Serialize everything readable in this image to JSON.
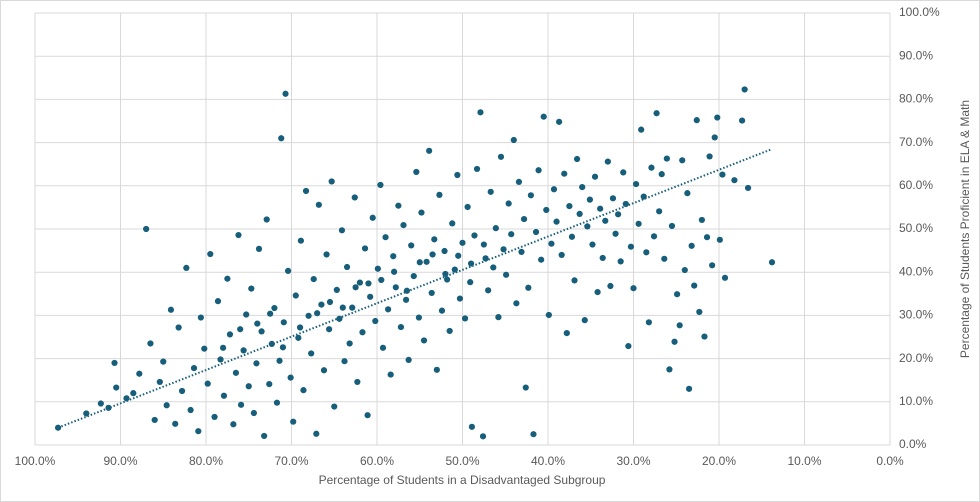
{
  "chart_data": {
    "type": "scatter",
    "x_label": "Percentage of Students in a Disadvantaged Subgroup",
    "y_label": "Percentage of Students Proficient in ELA & Math",
    "xlim": [
      100,
      0
    ],
    "ylim": [
      0,
      100
    ],
    "xticks": [
      {
        "value": 100,
        "label": "100.0%"
      },
      {
        "value": 90,
        "label": "90.0%"
      },
      {
        "value": 80,
        "label": "80.0%"
      },
      {
        "value": 70,
        "label": "70.0%"
      },
      {
        "value": 60,
        "label": "60.0%"
      },
      {
        "value": 50,
        "label": "50.0%"
      },
      {
        "value": 40,
        "label": "40.0%"
      },
      {
        "value": 30,
        "label": "30.0%"
      },
      {
        "value": 20,
        "label": "20.0%"
      },
      {
        "value": 10,
        "label": "10.0%"
      },
      {
        "value": 0,
        "label": "0.0%"
      }
    ],
    "yticks": [
      {
        "value": 0,
        "label": "0.0%"
      },
      {
        "value": 10,
        "label": "10.0%"
      },
      {
        "value": 20,
        "label": "20.0%"
      },
      {
        "value": 30,
        "label": "30.0%"
      },
      {
        "value": 40,
        "label": "40.0%"
      },
      {
        "value": 50,
        "label": "50.0%"
      },
      {
        "value": 60,
        "label": "60.0%"
      },
      {
        "value": 70,
        "label": "70.0%"
      },
      {
        "value": 80,
        "label": "80.0%"
      },
      {
        "value": 90,
        "label": "90.0%"
      },
      {
        "value": 100,
        "label": "100.0%"
      }
    ],
    "grid": true,
    "color": "#175e7a",
    "x": [
      97.3,
      94,
      92.3,
      91.4,
      90.7,
      90.5,
      89.3,
      88.5,
      87.8,
      87,
      86.5,
      86,
      85.4,
      85,
      84.6,
      84.1,
      83.6,
      83.2,
      82.8,
      82.3,
      81.8,
      81.4,
      80.9,
      80.6,
      80.2,
      79.8,
      79.5,
      79,
      78.6,
      78.3,
      77.9,
      77.5,
      77.2,
      76.8,
      76.5,
      76.2,
      75.9,
      75.6,
      75.3,
      75,
      74.7,
      74.4,
      74.1,
      73.8,
      73.5,
      73.2,
      72.9,
      72.6,
      72.3,
      72,
      71.7,
      71.4,
      71.2,
      70.9,
      70.7,
      70.4,
      70.1,
      69.8,
      69.5,
      69.2,
      68.9,
      68.6,
      68.3,
      68,
      67.7,
      67.4,
      67.1,
      66.8,
      66.5,
      66.2,
      65.9,
      65.6,
      65.3,
      65,
      64.7,
      64.4,
      64.1,
      63.8,
      63.5,
      63.2,
      62.9,
      62.6,
      62.3,
      62,
      61.7,
      61.4,
      61.1,
      60.8,
      60.5,
      60.2,
      59.9,
      59.6,
      59.3,
      59,
      58.7,
      58.4,
      58.1,
      57.8,
      57.5,
      57.2,
      56.9,
      56.6,
      56.3,
      56,
      55.7,
      55.4,
      55.1,
      54.8,
      54.5,
      54.2,
      53.9,
      53.6,
      53.3,
      53,
      52.7,
      52.4,
      52.1,
      51.8,
      51.5,
      51.2,
      50.9,
      50.6,
      50.3,
      50,
      49.7,
      49.4,
      49.1,
      48.9,
      48.6,
      48.3,
      47.9,
      47.6,
      47.3,
      47,
      46.7,
      46.4,
      46.1,
      45.8,
      45.5,
      45.2,
      44.9,
      44.6,
      44.3,
      44,
      43.7,
      43.4,
      43.1,
      42.8,
      42.6,
      42.3,
      42,
      41.7,
      41.4,
      41.1,
      40.8,
      40.5,
      40.2,
      39.9,
      39.6,
      39.3,
      39,
      38.7,
      38.4,
      38.1,
      37.8,
      37.5,
      37.2,
      36.9,
      36.6,
      36.3,
      36,
      35.7,
      35.4,
      35.1,
      34.8,
      34.5,
      34.2,
      33.9,
      33.6,
      33.3,
      33,
      32.7,
      32.4,
      32.1,
      31.8,
      31.5,
      31.2,
      30.9,
      30.6,
      30.3,
      30,
      29.7,
      29.4,
      29.1,
      28.8,
      28.5,
      28.2,
      27.9,
      27.6,
      27.3,
      27,
      26.7,
      26.4,
      26.1,
      25.8,
      25.5,
      25.2,
      24.9,
      24.6,
      24.3,
      24,
      23.7,
      23.5,
      23.2,
      22.9,
      22.6,
      22.3,
      22,
      21.7,
      21.4,
      21.1,
      20.8,
      20.5,
      20.2,
      19.9,
      19.6,
      19.3,
      18.2,
      17.3,
      17,
      16.6,
      13.8,
      78,
      76,
      74,
      72.5,
      71,
      69,
      67,
      65.5,
      64,
      62.5,
      61,
      59.5,
      58,
      56.5,
      55,
      53.5,
      52,
      50.5,
      49,
      47.5
    ],
    "y": [
      4,
      7.3,
      9.6,
      8.6,
      19,
      13.3,
      10.8,
      12,
      16.5,
      50,
      23.5,
      5.8,
      14.6,
      19.3,
      9.2,
      31.3,
      4.9,
      27.2,
      12.5,
      41,
      8.1,
      17.8,
      3.2,
      29.5,
      22.3,
      14.2,
      44.2,
      6.5,
      33.3,
      19.8,
      11.4,
      38.5,
      25.6,
      4.8,
      16.7,
      48.6,
      9.3,
      21.9,
      30.2,
      13.6,
      36.2,
      7.4,
      18.9,
      45.4,
      26.3,
      2.1,
      52.2,
      14.1,
      23.4,
      31.7,
      9.8,
      19.5,
      71,
      28.4,
      81.3,
      40.3,
      15.6,
      5.4,
      34.6,
      24.8,
      47.3,
      12.7,
      58.8,
      29.9,
      21.2,
      38.4,
      2.6,
      55.6,
      32.5,
      17.3,
      44.1,
      26.8,
      61,
      8.9,
      35.9,
      29.2,
      49.7,
      19.4,
      41.2,
      23.5,
      31.8,
      57.3,
      14.6,
      37.6,
      26.1,
      45.5,
      6.9,
      34.3,
      52.6,
      28.7,
      40.8,
      60.2,
      22.5,
      48.1,
      31.4,
      16.3,
      43.7,
      36.5,
      55.4,
      27.3,
      50.9,
      33.6,
      19.7,
      46.2,
      39.1,
      63.2,
      29.5,
      53.8,
      24.2,
      42.4,
      68.1,
      35.2,
      47.6,
      17.4,
      57.9,
      31.1,
      44.9,
      38.3,
      26.4,
      51.3,
      40.6,
      62.5,
      33.9,
      46.8,
      29.3,
      55.1,
      37.7,
      4.2,
      48.5,
      63.9,
      77,
      2,
      43.2,
      35.8,
      58.6,
      41.1,
      50.2,
      29.6,
      66.7,
      45.3,
      39.4,
      55.9,
      48.8,
      70.6,
      32.8,
      60.9,
      44.7,
      52.3,
      13.3,
      36.4,
      57.8,
      2.5,
      49.3,
      63.6,
      42.9,
      76,
      54.4,
      30.1,
      46.6,
      59.2,
      51.7,
      74.8,
      44,
      62.8,
      25.9,
      55.3,
      48.2,
      38.1,
      66.2,
      53.5,
      59.7,
      28.9,
      50.6,
      56.8,
      46.4,
      62.1,
      35.4,
      54.7,
      43.3,
      51.9,
      65.6,
      36.8,
      57.1,
      48.9,
      53.4,
      42.5,
      63.1,
      55.8,
      22.9,
      45.9,
      36.3,
      60.4,
      51.2,
      73,
      57.5,
      44.6,
      28.4,
      64.2,
      48.3,
      76.8,
      54.1,
      62.7,
      43.1,
      66.3,
      17.5,
      50.7,
      23.9,
      34.9,
      27.7,
      65.9,
      40.5,
      58.3,
      13,
      46.1,
      36.9,
      75.2,
      30.8,
      52.1,
      25.1,
      48.1,
      66.8,
      41.6,
      71.2,
      75.8,
      47.5,
      62.6,
      38.7,
      61.3,
      75.1,
      82.3,
      59.5,
      42.3,
      22.5,
      26.8,
      28.1,
      30.4,
      22.6,
      27.2,
      30.5,
      33.1,
      31.8,
      36.5,
      37.4,
      38.2,
      40.1,
      35.7,
      42.3,
      44.1,
      39.6,
      43.8,
      42,
      46.4
    ],
    "trendline": {
      "x": [
        97.3,
        13.8
      ],
      "y": [
        4,
        68.5
      ],
      "color": "#175e7a"
    }
  }
}
